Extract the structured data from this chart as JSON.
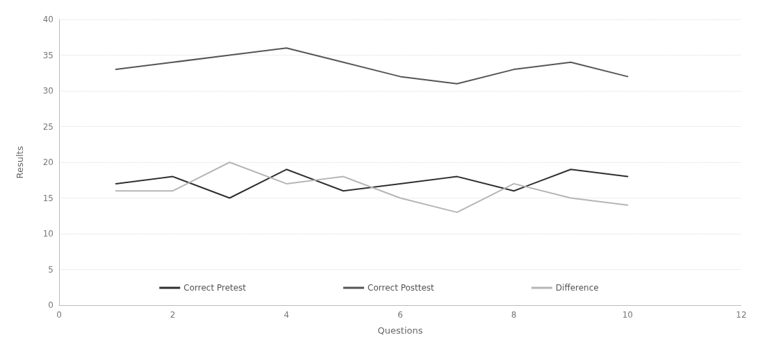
{
  "chart_data": {
    "type": "line",
    "xlabel": "Questions",
    "ylabel": "Results",
    "x": [
      1,
      2,
      3,
      4,
      5,
      6,
      7,
      8,
      9,
      10
    ],
    "series": [
      {
        "name": "Correct Pretest",
        "color": "#2e2e2e",
        "values": [
          17,
          18,
          15,
          19,
          16,
          17,
          18,
          16,
          19,
          18
        ]
      },
      {
        "name": "Correct Posttest",
        "color": "#555555",
        "values": [
          33,
          34,
          35,
          36,
          34,
          32,
          31,
          33,
          34,
          32
        ]
      },
      {
        "name": "Difference",
        "color": "#b5b5b5",
        "values": [
          16,
          16,
          20,
          17,
          18,
          15,
          13,
          17,
          15,
          14
        ]
      }
    ],
    "xlim": [
      0,
      12
    ],
    "xticks": [
      0,
      2,
      4,
      6,
      8,
      10,
      12
    ],
    "ylim": [
      0,
      40
    ],
    "yticks": [
      0,
      5,
      10,
      15,
      20,
      25,
      30,
      35,
      40
    ],
    "grid": "y",
    "legend": "bottom",
    "marker": "none",
    "line_style": "solid"
  }
}
